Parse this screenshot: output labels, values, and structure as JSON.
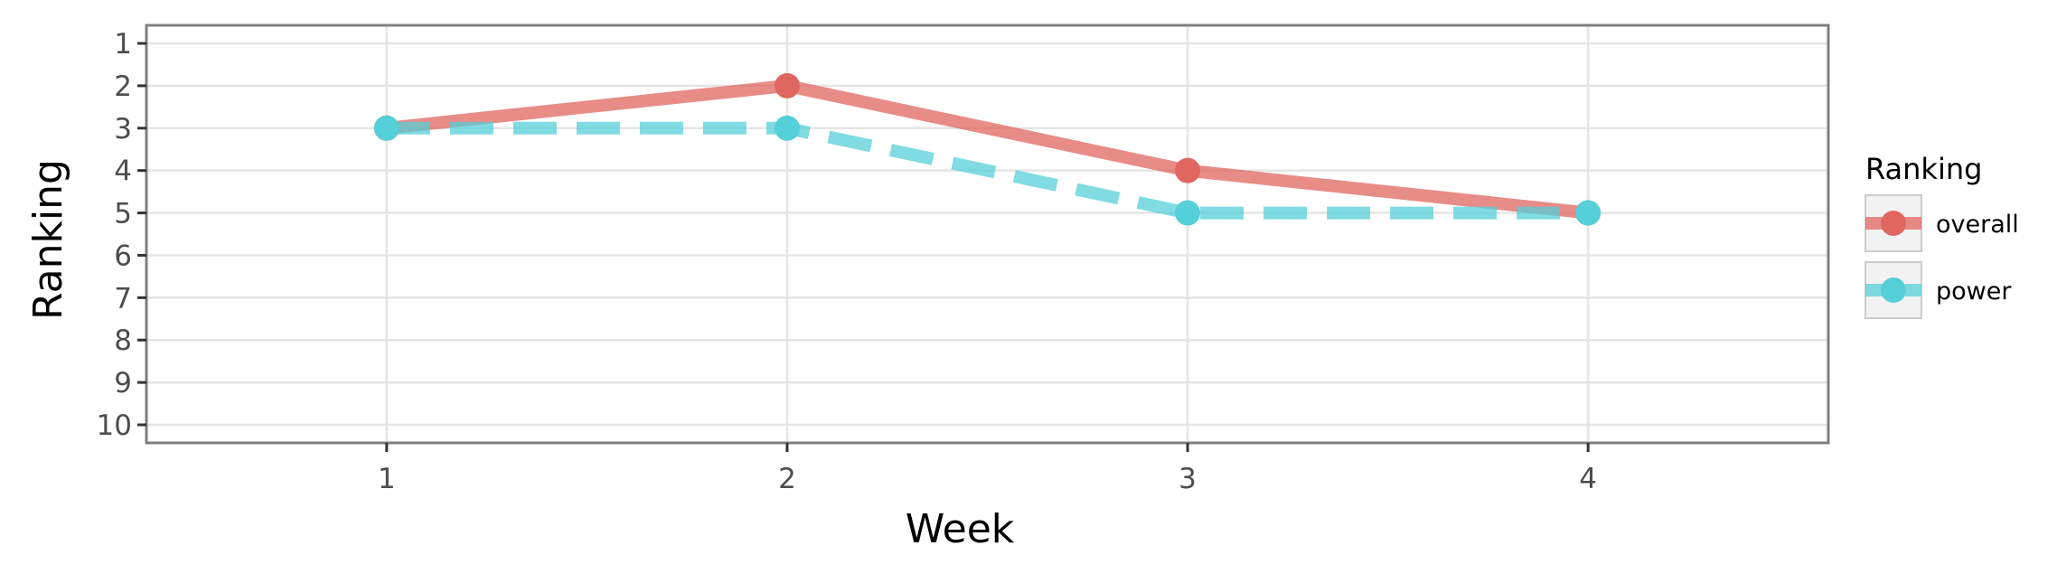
{
  "chart_data": {
    "type": "line",
    "xlabel": "Week",
    "ylabel": "Ranking",
    "x": [
      1,
      2,
      3,
      4
    ],
    "x_ticks": [
      "1",
      "2",
      "3",
      "4"
    ],
    "xlim": [
      0.4,
      4.6
    ],
    "y_ticks": [
      "1",
      "2",
      "3",
      "4",
      "5",
      "6",
      "7",
      "8",
      "9",
      "10"
    ],
    "ylim": [
      1,
      10
    ],
    "y_reversed": true,
    "grid": true,
    "legend": {
      "title": "Ranking",
      "position": "right",
      "entries": [
        "overall",
        "power"
      ]
    },
    "series": [
      {
        "name": "overall",
        "values": [
          3,
          2,
          4,
          5
        ],
        "color": "#e06660",
        "line": "solid"
      },
      {
        "name": "power",
        "values": [
          3,
          3,
          5,
          5
        ],
        "color": "#55cfd8",
        "line": "dashed"
      }
    ]
  }
}
